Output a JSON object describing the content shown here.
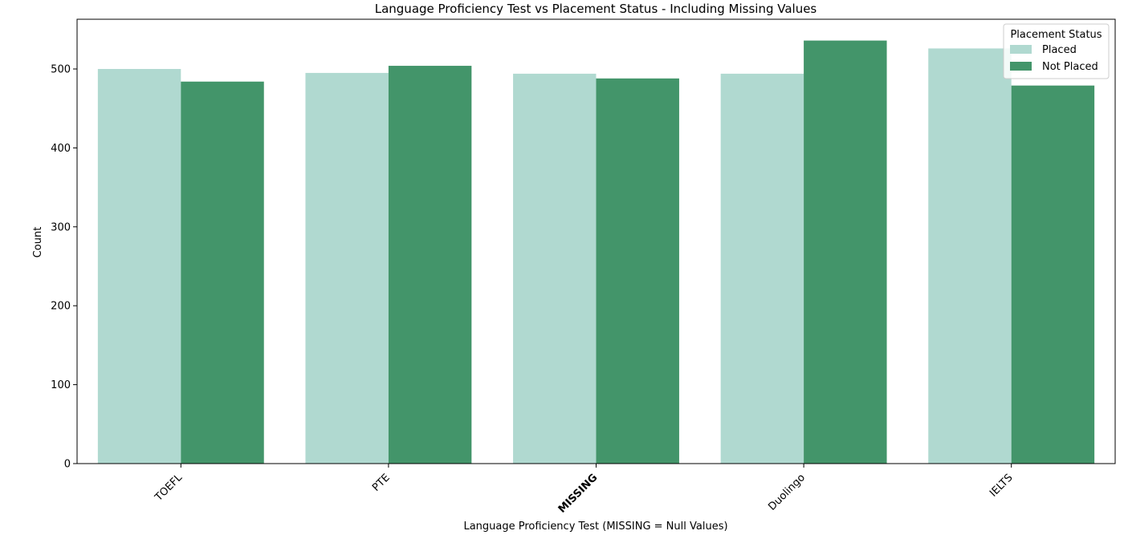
{
  "chart_data": {
    "type": "bar",
    "title": "Language Proficiency Test vs Placement Status - Including Missing Values",
    "xlabel": "Language Proficiency Test (MISSING = Null Values)",
    "ylabel": "Count",
    "categories": [
      "TOEFL",
      "PTE",
      "MISSING",
      "Duolingo",
      "IELTS"
    ],
    "highlight_category": "MISSING",
    "highlight_color": "#e8140e",
    "ylim": [
      0,
      563
    ],
    "yticks": [
      0,
      100,
      200,
      300,
      400,
      500
    ],
    "legend": {
      "title": "Placement Status",
      "position": "top-right"
    },
    "series": [
      {
        "name": "Placed",
        "color": "#b0d9d0",
        "values": [
          500,
          495,
          494,
          494,
          526
        ]
      },
      {
        "name": "Not Placed",
        "color": "#43956a",
        "values": [
          484,
          504,
          488,
          536,
          479
        ]
      }
    ]
  }
}
